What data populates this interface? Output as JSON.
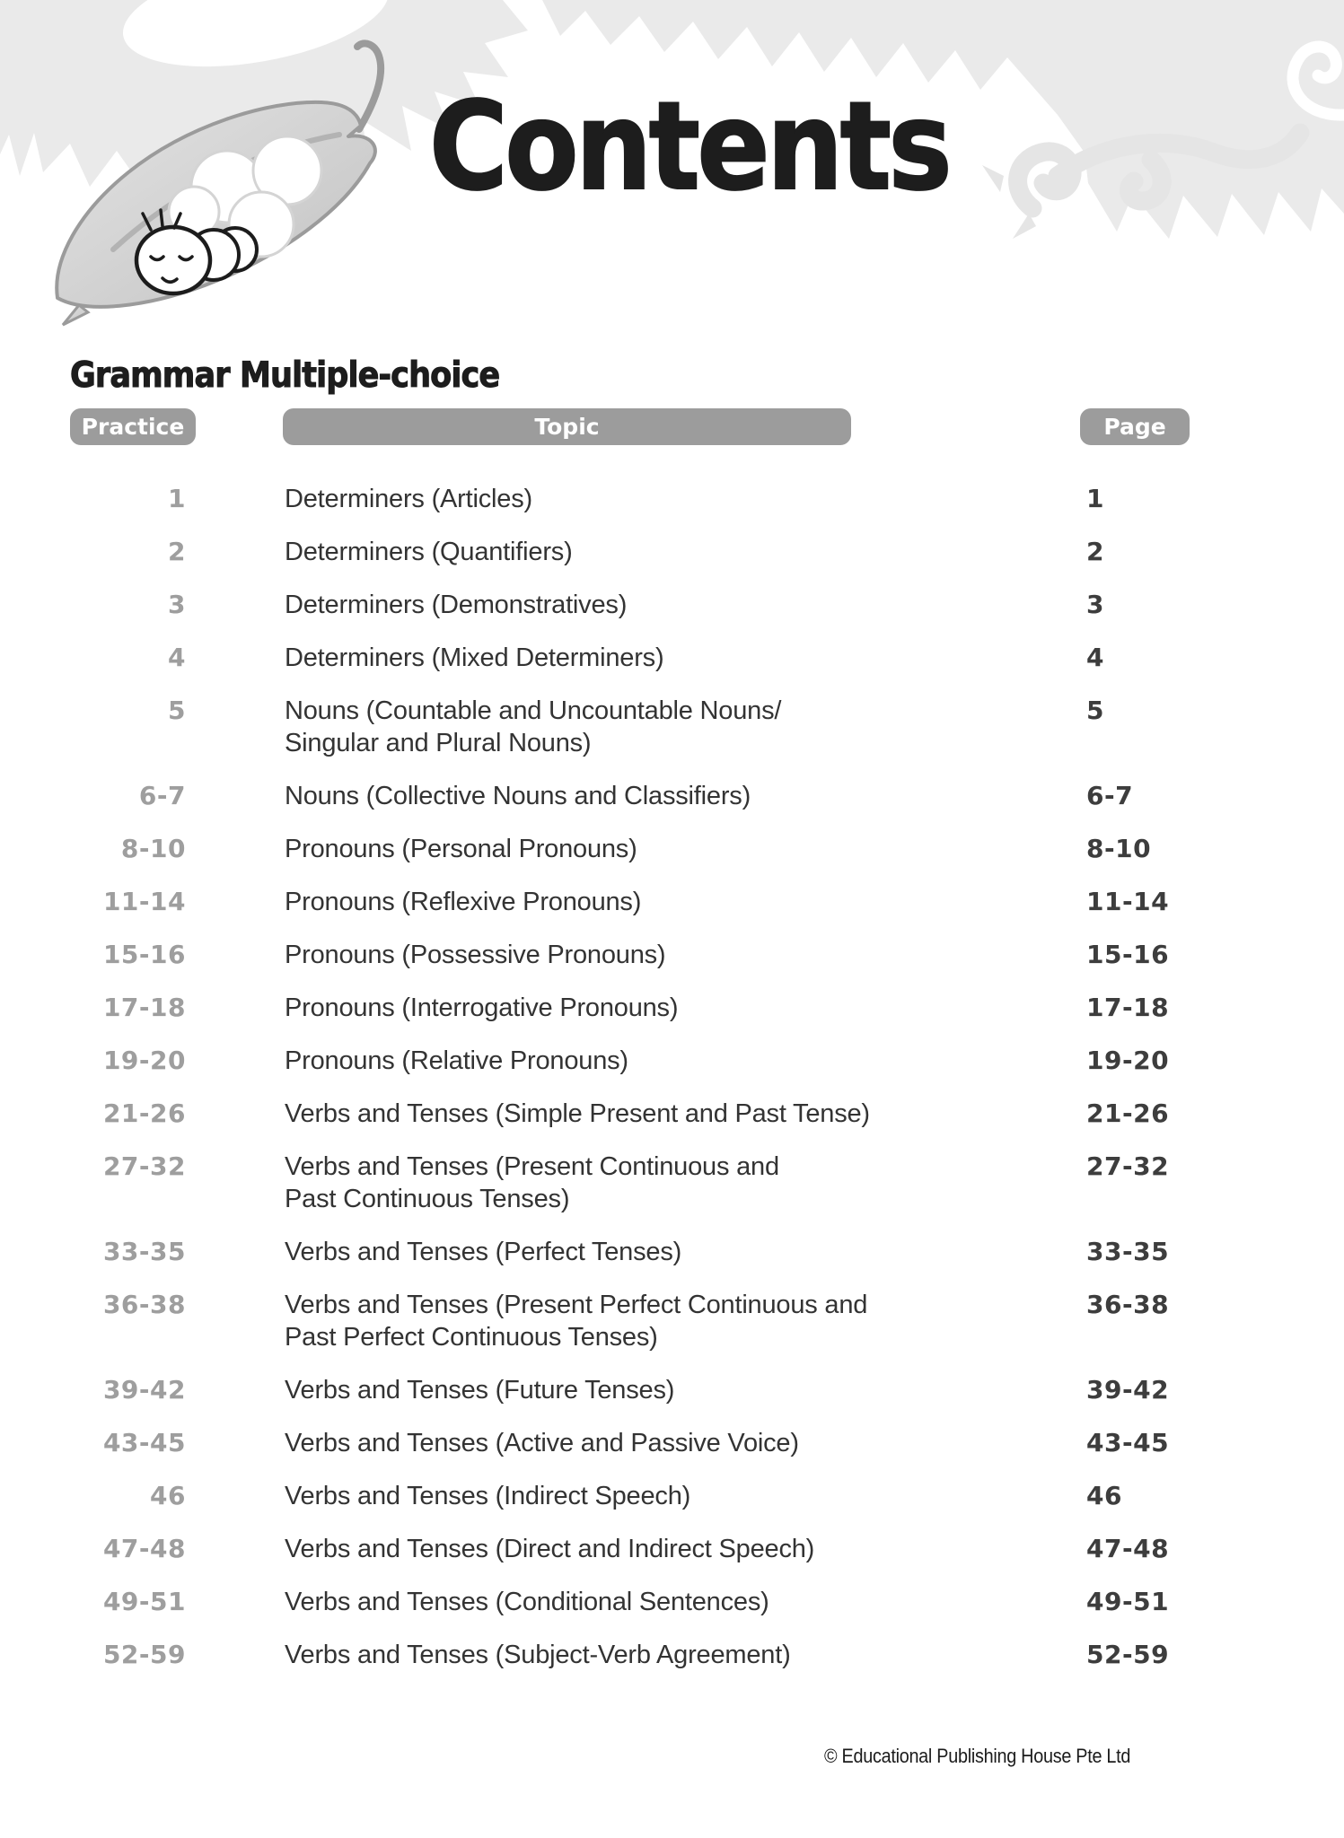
{
  "page": {
    "title": "Contents",
    "section_heading": "Grammar Multiple-choice",
    "footer_copyright": "© Educational Publishing House Pte Ltd"
  },
  "illustration": {
    "description": "sleeping caterpillar resting on a gray leaf pod filled with white eggs, decorative jagged leaf border and vine swirl along top of page"
  },
  "colors": {
    "decoration_gray": "#eaeaea",
    "swirl_gray": "#e5e5e5",
    "header_pill_gray": "#9c9c9c",
    "practice_number_gray": "#9e9e9e",
    "topic_text": "#333333",
    "page_number": "#3d3d3d",
    "title_text": "#1d1d1d"
  },
  "table": {
    "headers": {
      "practice": "Practice",
      "topic": "Topic",
      "page": "Page"
    },
    "rows": [
      {
        "practice": "1",
        "topic_lines": [
          "Determiners (Articles)"
        ],
        "page": "1"
      },
      {
        "practice": "2",
        "topic_lines": [
          "Determiners (Quantifiers)"
        ],
        "page": "2"
      },
      {
        "practice": "3",
        "topic_lines": [
          "Determiners (Demonstratives)"
        ],
        "page": "3"
      },
      {
        "practice": "4",
        "topic_lines": [
          "Determiners (Mixed Determiners)"
        ],
        "page": "4"
      },
      {
        "practice": "5",
        "topic_lines": [
          "Nouns (Countable and Uncountable Nouns/",
          "Singular and Plural Nouns)"
        ],
        "page": "5"
      },
      {
        "practice": "6-7",
        "topic_lines": [
          "Nouns (Collective Nouns and Classifiers)"
        ],
        "page": "6-7"
      },
      {
        "practice": "8-10",
        "topic_lines": [
          "Pronouns (Personal Pronouns)"
        ],
        "page": "8-10"
      },
      {
        "practice": "11-14",
        "topic_lines": [
          "Pronouns (Reflexive Pronouns)"
        ],
        "page": "11-14"
      },
      {
        "practice": "15-16",
        "topic_lines": [
          "Pronouns (Possessive Pronouns)"
        ],
        "page": "15-16"
      },
      {
        "practice": "17-18",
        "topic_lines": [
          "Pronouns (Interrogative Pronouns)"
        ],
        "page": "17-18"
      },
      {
        "practice": "19-20",
        "topic_lines": [
          "Pronouns (Relative Pronouns)"
        ],
        "page": "19-20"
      },
      {
        "practice": "21-26",
        "topic_lines": [
          "Verbs and Tenses (Simple Present and Past Tense)"
        ],
        "page": "21-26"
      },
      {
        "practice": "27-32",
        "topic_lines": [
          "Verbs and Tenses (Present Continuous and",
          "Past Continuous Tenses)"
        ],
        "page": "27-32"
      },
      {
        "practice": "33-35",
        "topic_lines": [
          "Verbs and Tenses (Perfect Tenses)"
        ],
        "page": "33-35"
      },
      {
        "practice": "36-38",
        "topic_lines": [
          "Verbs and Tenses (Present Perfect Continuous and",
          "Past Perfect Continuous Tenses)"
        ],
        "page": "36-38"
      },
      {
        "practice": "39-42",
        "topic_lines": [
          "Verbs and Tenses (Future Tenses)"
        ],
        "page": "39-42"
      },
      {
        "practice": "43-45",
        "topic_lines": [
          "Verbs and Tenses (Active and Passive Voice)"
        ],
        "page": "43-45"
      },
      {
        "practice": "46",
        "topic_lines": [
          "Verbs and Tenses (Indirect Speech)"
        ],
        "page": "46"
      },
      {
        "practice": "47-48",
        "topic_lines": [
          "Verbs and Tenses (Direct and Indirect Speech)"
        ],
        "page": "47-48"
      },
      {
        "practice": "49-51",
        "topic_lines": [
          "Verbs and Tenses (Conditional Sentences)"
        ],
        "page": "49-51"
      },
      {
        "practice": "52-59",
        "topic_lines": [
          "Verbs and Tenses (Subject-Verb Agreement)"
        ],
        "page": "52-59"
      }
    ]
  }
}
